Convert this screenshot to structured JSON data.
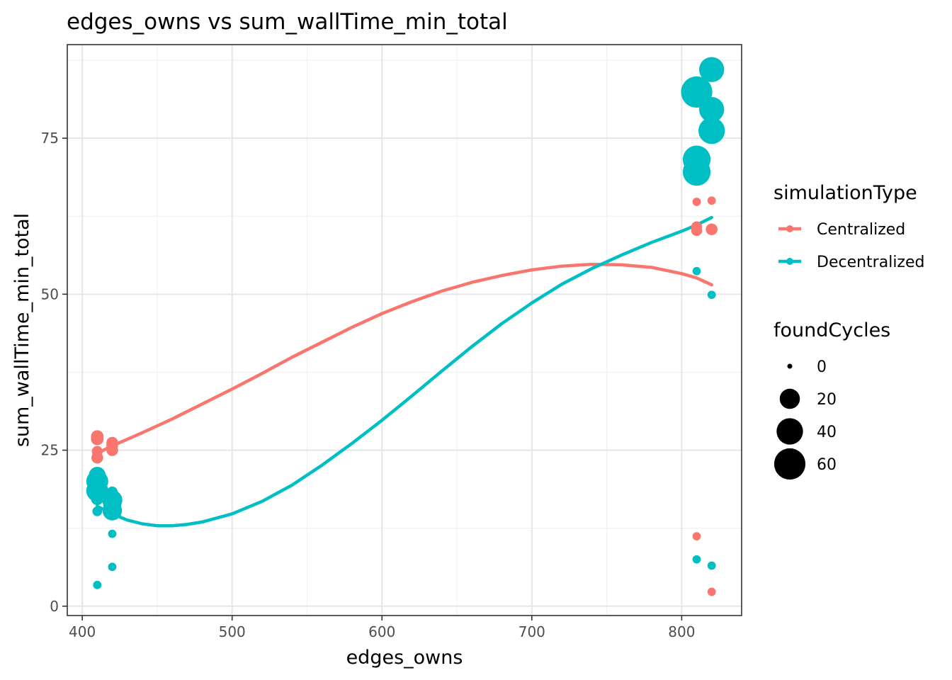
{
  "chart_data": {
    "type": "scatter",
    "title": "edges_owns  vs  sum_wallTime_min_total",
    "xlabel": "edges_owns",
    "ylabel": "sum_wallTime_min_total",
    "xlim": [
      390,
      840
    ],
    "ylim": [
      -1.5,
      90
    ],
    "x_ticks": [
      400,
      500,
      600,
      700,
      800
    ],
    "y_ticks": [
      0,
      25,
      50,
      75
    ],
    "grid": true,
    "legend_placement": "right",
    "legend": {
      "color_title": "simulationType",
      "size_title": "foundCycles",
      "size_entries": [
        0,
        20,
        40,
        60
      ]
    },
    "series": [
      {
        "name": "Centralized",
        "color": "#F8766D",
        "points": [
          {
            "x": 410,
            "y": 27.2,
            "size": 5
          },
          {
            "x": 410,
            "y": 26.8,
            "size": 5
          },
          {
            "x": 410,
            "y": 24.8,
            "size": 3
          },
          {
            "x": 410,
            "y": 23.8,
            "size": 4
          },
          {
            "x": 410,
            "y": 21.0,
            "size": 2
          },
          {
            "x": 420,
            "y": 26.2,
            "size": 4
          },
          {
            "x": 420,
            "y": 25.8,
            "size": 4
          },
          {
            "x": 420,
            "y": 25.0,
            "size": 4
          },
          {
            "x": 810,
            "y": 64.8,
            "size": 1
          },
          {
            "x": 810,
            "y": 60.8,
            "size": 3
          },
          {
            "x": 810,
            "y": 60.2,
            "size": 3
          },
          {
            "x": 810,
            "y": 11.2,
            "size": 1
          },
          {
            "x": 820,
            "y": 65.0,
            "size": 1
          },
          {
            "x": 820,
            "y": 60.4,
            "size": 4
          },
          {
            "x": 820,
            "y": 2.3,
            "size": 1
          }
        ],
        "smooth": [
          {
            "x": 410,
            "y": 24.5
          },
          {
            "x": 420,
            "y": 25.7
          },
          {
            "x": 440,
            "y": 27.8
          },
          {
            "x": 460,
            "y": 30.0
          },
          {
            "x": 480,
            "y": 32.4
          },
          {
            "x": 500,
            "y": 34.8
          },
          {
            "x": 520,
            "y": 37.3
          },
          {
            "x": 540,
            "y": 39.9
          },
          {
            "x": 560,
            "y": 42.3
          },
          {
            "x": 580,
            "y": 44.7
          },
          {
            "x": 600,
            "y": 46.9
          },
          {
            "x": 620,
            "y": 48.8
          },
          {
            "x": 640,
            "y": 50.5
          },
          {
            "x": 660,
            "y": 51.9
          },
          {
            "x": 680,
            "y": 53.0
          },
          {
            "x": 700,
            "y": 53.9
          },
          {
            "x": 720,
            "y": 54.5
          },
          {
            "x": 740,
            "y": 54.8
          },
          {
            "x": 760,
            "y": 54.7
          },
          {
            "x": 780,
            "y": 54.3
          },
          {
            "x": 800,
            "y": 53.3
          },
          {
            "x": 810,
            "y": 52.6
          },
          {
            "x": 820,
            "y": 51.5
          }
        ]
      },
      {
        "name": "Decentralized",
        "color": "#00BFC4",
        "points": [
          {
            "x": 410,
            "y": 21.0,
            "size": 12
          },
          {
            "x": 410,
            "y": 20.0,
            "size": 25
          },
          {
            "x": 410,
            "y": 18.5,
            "size": 25
          },
          {
            "x": 410,
            "y": 17.2,
            "size": 5
          },
          {
            "x": 410,
            "y": 15.2,
            "size": 2
          },
          {
            "x": 410,
            "y": 3.4,
            "size": 1
          },
          {
            "x": 420,
            "y": 18.3,
            "size": 3
          },
          {
            "x": 420,
            "y": 17.0,
            "size": 20
          },
          {
            "x": 420,
            "y": 16.3,
            "size": 15
          },
          {
            "x": 420,
            "y": 15.3,
            "size": 18
          },
          {
            "x": 420,
            "y": 11.6,
            "size": 1
          },
          {
            "x": 420,
            "y": 6.3,
            "size": 1
          },
          {
            "x": 810,
            "y": 82.4,
            "size": 60
          },
          {
            "x": 810,
            "y": 71.6,
            "size": 45
          },
          {
            "x": 810,
            "y": 69.6,
            "size": 45
          },
          {
            "x": 810,
            "y": 53.7,
            "size": 1
          },
          {
            "x": 810,
            "y": 7.5,
            "size": 1
          },
          {
            "x": 820,
            "y": 86.0,
            "size": 35
          },
          {
            "x": 820,
            "y": 79.6,
            "size": 35
          },
          {
            "x": 820,
            "y": 76.2,
            "size": 40
          },
          {
            "x": 820,
            "y": 49.9,
            "size": 1
          },
          {
            "x": 820,
            "y": 6.5,
            "size": 1
          }
        ],
        "smooth": [
          {
            "x": 410,
            "y": 16.0
          },
          {
            "x": 420,
            "y": 14.8
          },
          {
            "x": 430,
            "y": 13.8
          },
          {
            "x": 440,
            "y": 13.2
          },
          {
            "x": 450,
            "y": 12.9
          },
          {
            "x": 460,
            "y": 12.9
          },
          {
            "x": 470,
            "y": 13.1
          },
          {
            "x": 480,
            "y": 13.5
          },
          {
            "x": 500,
            "y": 14.8
          },
          {
            "x": 520,
            "y": 16.8
          },
          {
            "x": 540,
            "y": 19.4
          },
          {
            "x": 560,
            "y": 22.6
          },
          {
            "x": 580,
            "y": 26.1
          },
          {
            "x": 600,
            "y": 29.8
          },
          {
            "x": 620,
            "y": 33.7
          },
          {
            "x": 640,
            "y": 37.7
          },
          {
            "x": 660,
            "y": 41.6
          },
          {
            "x": 680,
            "y": 45.3
          },
          {
            "x": 700,
            "y": 48.6
          },
          {
            "x": 720,
            "y": 51.6
          },
          {
            "x": 740,
            "y": 54.1
          },
          {
            "x": 760,
            "y": 56.3
          },
          {
            "x": 780,
            "y": 58.3
          },
          {
            "x": 800,
            "y": 60.1
          },
          {
            "x": 810,
            "y": 61.1
          },
          {
            "x": 820,
            "y": 62.3
          }
        ]
      }
    ]
  }
}
